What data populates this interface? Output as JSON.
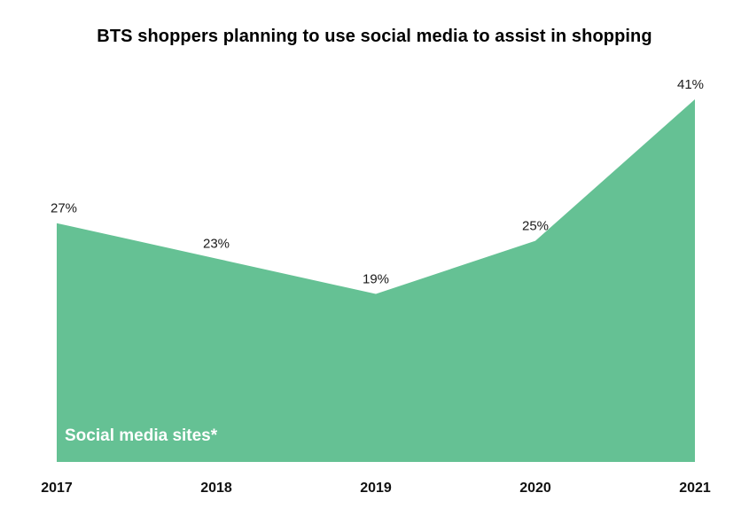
{
  "chart_data": {
    "type": "area",
    "title": "BTS shoppers planning to use social media to assist in shopping",
    "categories": [
      "2017",
      "2018",
      "2019",
      "2020",
      "2021"
    ],
    "series": [
      {
        "name": "Social media sites*",
        "values": [
          27,
          23,
          19,
          25,
          41
        ],
        "value_labels": [
          "27%",
          "23%",
          "19%",
          "25%",
          "41%"
        ]
      }
    ],
    "xlabel": "",
    "ylabel": "",
    "ylim": [
      0,
      41
    ],
    "grid": false,
    "legend": "inside-bottom-left",
    "colors": {
      "area": "#65c194",
      "text": "#1a1a1a",
      "series_label": "#ffffff"
    }
  }
}
